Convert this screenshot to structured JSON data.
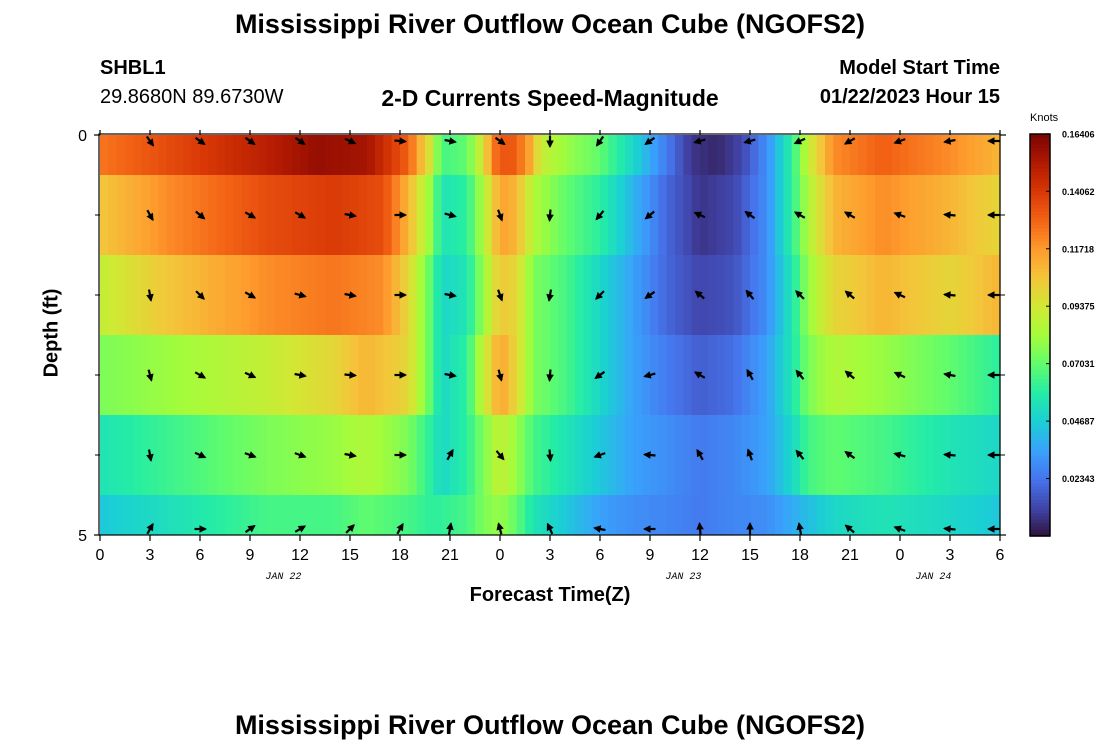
{
  "header": {
    "title": "Mississippi River Outflow Ocean Cube (NGOFS2)",
    "station_id": "SHBL1",
    "coordinates": "29.8680N  89.6730W",
    "plot_subtitle": "2-D Currents Speed-Magnitude",
    "model_start_label": "Model Start Time",
    "model_start_value": "01/22/2023 Hour 15"
  },
  "footer": {
    "title": "Mississippi River Outflow Ocean Cube (NGOFS2)"
  },
  "chart_data": {
    "type": "heatmap",
    "xlabel": "Forecast Time(Z)",
    "ylabel": "Depth (ft)",
    "x_range": [
      0,
      54
    ],
    "y_range": [
      0,
      5
    ],
    "x_tick_positions": [
      0,
      3,
      6,
      9,
      12,
      15,
      18,
      21,
      24,
      27,
      30,
      33,
      36,
      39,
      42,
      45,
      48,
      51,
      54
    ],
    "x_tick_labels": [
      "0",
      "3",
      "6",
      "9",
      "12",
      "15",
      "18",
      "21",
      "0",
      "3",
      "6",
      "9",
      "12",
      "15",
      "18",
      "21",
      "0",
      "3",
      "6"
    ],
    "y_tick_labels": [
      {
        "value": 0,
        "label": "0"
      },
      {
        "value": 5,
        "label": "5"
      }
    ],
    "y_minor_ticks": [
      1,
      2,
      3,
      4
    ],
    "date_labels": [
      {
        "x": 11,
        "label": "JAN 22"
      },
      {
        "x": 35,
        "label": "JAN 23"
      },
      {
        "x": 50,
        "label": "JAN 24"
      }
    ],
    "colorbar": {
      "unit": "Knots",
      "min": 0.0,
      "max": 0.164,
      "tick_labels": [
        "0.16406",
        "0.14062",
        "0.11718",
        "0.09375",
        "0.07031",
        "0.04687",
        "0.02343"
      ],
      "tick_values": [
        0.16406,
        0.14062,
        0.11718,
        0.09375,
        0.07031,
        0.04687,
        0.02343
      ],
      "colormap": [
        "#30123b",
        "#4145ab",
        "#4675ed",
        "#39a2fc",
        "#1bcfd4",
        "#24eca6",
        "#61fc6c",
        "#a4fc3b",
        "#d1e834",
        "#f3c63a",
        "#fe9b2d",
        "#f36315",
        "#d93806",
        "#b11901",
        "#7a0403"
      ]
    },
    "depth_layers": [
      0,
      1,
      2,
      3,
      4,
      5
    ],
    "speed_profiles": [
      [
        [
          0,
          0.125
        ],
        [
          4,
          0.135
        ],
        [
          10,
          0.15
        ],
        [
          13,
          0.158
        ],
        [
          16,
          0.155
        ],
        [
          18.5,
          0.13
        ],
        [
          19.8,
          0.095
        ],
        [
          20.5,
          0.065
        ],
        [
          22,
          0.07
        ],
        [
          23,
          0.095
        ],
        [
          23.6,
          0.125
        ],
        [
          24.5,
          0.135
        ],
        [
          25.6,
          0.12
        ],
        [
          26.5,
          0.09
        ],
        [
          28,
          0.08
        ],
        [
          30,
          0.07
        ],
        [
          32,
          0.05
        ],
        [
          34,
          0.025
        ],
        [
          35.5,
          0.008
        ],
        [
          37,
          0.005
        ],
        [
          38.5,
          0.012
        ],
        [
          40,
          0.03
        ],
        [
          41.5,
          0.06
        ],
        [
          42.5,
          0.09
        ],
        [
          44,
          0.12
        ],
        [
          47,
          0.13
        ],
        [
          51,
          0.12
        ],
        [
          54,
          0.11
        ]
      ],
      [
        [
          0,
          0.105
        ],
        [
          4,
          0.12
        ],
        [
          10,
          0.135
        ],
        [
          14,
          0.14
        ],
        [
          17,
          0.135
        ],
        [
          18.5,
          0.11
        ],
        [
          19.8,
          0.08
        ],
        [
          20.5,
          0.055
        ],
        [
          22,
          0.06
        ],
        [
          23,
          0.085
        ],
        [
          24,
          0.115
        ],
        [
          25,
          0.11
        ],
        [
          26,
          0.085
        ],
        [
          28,
          0.07
        ],
        [
          30,
          0.06
        ],
        [
          32,
          0.04
        ],
        [
          34,
          0.02
        ],
        [
          36,
          0.008
        ],
        [
          38,
          0.012
        ],
        [
          40,
          0.03
        ],
        [
          41.5,
          0.06
        ],
        [
          42.5,
          0.085
        ],
        [
          44,
          0.11
        ],
        [
          47,
          0.12
        ],
        [
          51,
          0.11
        ],
        [
          54,
          0.1
        ]
      ],
      [
        [
          0,
          0.09
        ],
        [
          4,
          0.105
        ],
        [
          10,
          0.12
        ],
        [
          14,
          0.125
        ],
        [
          17,
          0.12
        ],
        [
          18.5,
          0.1
        ],
        [
          19.8,
          0.07
        ],
        [
          20.5,
          0.05
        ],
        [
          22,
          0.055
        ],
        [
          23,
          0.08
        ],
        [
          24,
          0.105
        ],
        [
          25,
          0.1
        ],
        [
          26,
          0.075
        ],
        [
          28,
          0.065
        ],
        [
          30,
          0.05
        ],
        [
          32,
          0.035
        ],
        [
          34,
          0.02
        ],
        [
          36,
          0.012
        ],
        [
          38,
          0.015
        ],
        [
          40,
          0.03
        ],
        [
          41.5,
          0.055
        ],
        [
          42.5,
          0.08
        ],
        [
          44,
          0.1
        ],
        [
          47,
          0.11
        ],
        [
          51,
          0.1
        ],
        [
          54,
          0.11
        ]
      ],
      [
        [
          0,
          0.075
        ],
        [
          5,
          0.082
        ],
        [
          10,
          0.09
        ],
        [
          14,
          0.1
        ],
        [
          16,
          0.11
        ],
        [
          18.5,
          0.1
        ],
        [
          19.8,
          0.07
        ],
        [
          20.5,
          0.05
        ],
        [
          22,
          0.06
        ],
        [
          23,
          0.09
        ],
        [
          24,
          0.115
        ],
        [
          25,
          0.1
        ],
        [
          26,
          0.075
        ],
        [
          28,
          0.065
        ],
        [
          30,
          0.05
        ],
        [
          32,
          0.035
        ],
        [
          34,
          0.025
        ],
        [
          36,
          0.018
        ],
        [
          38,
          0.022
        ],
        [
          40,
          0.035
        ],
        [
          41.5,
          0.055
        ],
        [
          42.5,
          0.075
        ],
        [
          44,
          0.085
        ],
        [
          47,
          0.08
        ],
        [
          51,
          0.07
        ],
        [
          54,
          0.06
        ]
      ],
      [
        [
          0,
          0.055
        ],
        [
          5,
          0.065
        ],
        [
          10,
          0.075
        ],
        [
          14,
          0.08
        ],
        [
          16,
          0.085
        ],
        [
          18.5,
          0.075
        ],
        [
          19.8,
          0.06
        ],
        [
          20.5,
          0.05
        ],
        [
          22,
          0.06
        ],
        [
          23,
          0.075
        ],
        [
          24,
          0.09
        ],
        [
          25,
          0.08
        ],
        [
          26,
          0.065
        ],
        [
          28,
          0.055
        ],
        [
          30,
          0.045
        ],
        [
          32,
          0.035
        ],
        [
          34,
          0.03
        ],
        [
          36,
          0.025
        ],
        [
          38,
          0.028
        ],
        [
          40,
          0.035
        ],
        [
          41.5,
          0.05
        ],
        [
          42.5,
          0.065
        ],
        [
          44,
          0.07
        ],
        [
          47,
          0.065
        ],
        [
          51,
          0.055
        ],
        [
          54,
          0.05
        ]
      ],
      [
        [
          0,
          0.045
        ],
        [
          5,
          0.055
        ],
        [
          10,
          0.065
        ],
        [
          14,
          0.065
        ],
        [
          16,
          0.07
        ],
        [
          18.5,
          0.065
        ],
        [
          20,
          0.06
        ],
        [
          22,
          0.065
        ],
        [
          23,
          0.075
        ],
        [
          24,
          0.08
        ],
        [
          25,
          0.07
        ],
        [
          26,
          0.055
        ],
        [
          28,
          0.045
        ],
        [
          30,
          0.035
        ],
        [
          32,
          0.03
        ],
        [
          34,
          0.028
        ],
        [
          36,
          0.025
        ],
        [
          38,
          0.028
        ],
        [
          40,
          0.03
        ],
        [
          42,
          0.04
        ],
        [
          44,
          0.05
        ],
        [
          47,
          0.055
        ],
        [
          51,
          0.05
        ],
        [
          54,
          0.045
        ]
      ]
    ],
    "vector_rows_depth": [
      0,
      1,
      2,
      3,
      4,
      5
    ],
    "vector_columns_x": [
      3,
      6,
      9,
      12,
      15,
      18,
      21,
      24,
      27,
      30,
      33,
      36,
      39,
      42,
      45,
      48,
      51,
      54
    ],
    "vector_directions_deg": [
      [
        -55,
        -35,
        -35,
        -35,
        -25,
        -5,
        -10,
        -35,
        -90,
        -125,
        -145,
        -165,
        -165,
        -155,
        -150,
        -160,
        -170,
        180
      ],
      [
        -60,
        -40,
        -30,
        -30,
        -10,
        0,
        -15,
        -70,
        -95,
        -130,
        -140,
        155,
        145,
        150,
        150,
        160,
        175,
        180
      ],
      [
        -80,
        -45,
        -30,
        -15,
        -10,
        0,
        -10,
        -70,
        -100,
        -135,
        -145,
        140,
        130,
        135,
        140,
        155,
        175,
        180
      ],
      [
        -75,
        -30,
        -25,
        -10,
        -5,
        0,
        -10,
        -75,
        -95,
        -145,
        -165,
        150,
        120,
        130,
        140,
        155,
        170,
        180
      ],
      [
        -80,
        -25,
        -20,
        -20,
        -10,
        0,
        60,
        -50,
        -85,
        -160,
        175,
        120,
        110,
        130,
        145,
        165,
        175,
        180
      ],
      [
        60,
        0,
        35,
        30,
        45,
        60,
        80,
        105,
        115,
        170,
        180,
        95,
        90,
        100,
        140,
        160,
        175,
        180
      ]
    ]
  }
}
